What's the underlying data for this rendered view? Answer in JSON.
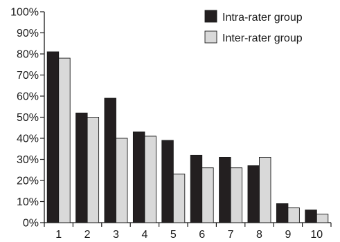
{
  "chart_data": {
    "type": "bar",
    "categories": [
      "1",
      "2",
      "3",
      "4",
      "5",
      "6",
      "7",
      "8",
      "9",
      "10"
    ],
    "series": [
      {
        "name": "Intra-rater group",
        "color": "#231f20",
        "values": [
          81,
          52,
          59,
          43,
          39,
          32,
          31,
          27,
          9,
          6
        ]
      },
      {
        "name": "Inter-rater group",
        "color": "#d9d9d9",
        "values": [
          78,
          50,
          40,
          41,
          23,
          26,
          26,
          31,
          7,
          4
        ]
      }
    ],
    "ylim": [
      0,
      100
    ],
    "yticks": [
      "0%",
      "10%",
      "20%",
      "30%",
      "40%",
      "50%",
      "60%",
      "70%",
      "80%",
      "90%",
      "100%"
    ],
    "grid": false,
    "legend_position": "top-right",
    "title": "",
    "xlabel": "",
    "ylabel": ""
  }
}
